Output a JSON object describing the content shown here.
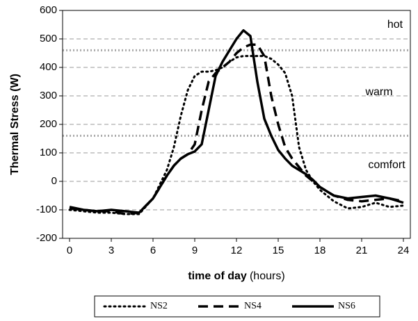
{
  "chart_data": {
    "type": "line",
    "ylabel": "Thermal Stress (W)",
    "xlabel": "time of day",
    "xlabel_unit": "(hours)",
    "x": [
      0,
      1,
      2,
      3,
      4,
      5,
      6,
      6.5,
      7,
      7.5,
      8,
      8.5,
      9,
      9.5,
      10,
      10.5,
      11,
      11.5,
      12,
      12.5,
      13,
      13.5,
      14,
      14.5,
      15,
      15.5,
      16,
      16.5,
      17,
      17.5,
      18,
      19,
      20,
      21,
      22,
      23,
      24
    ],
    "xlim": [
      -0.5,
      24.5
    ],
    "xticks": [
      0,
      3,
      6,
      9,
      12,
      15,
      18,
      21,
      24
    ],
    "ylim": [
      -200,
      600
    ],
    "yticks": [
      -200,
      -100,
      0,
      100,
      200,
      300,
      400,
      500,
      600
    ],
    "grid": true,
    "threshold_lines": [
      160,
      460
    ],
    "annotations": [
      "hot",
      "warm",
      "comfort"
    ],
    "legend": "bottom",
    "series": [
      {
        "name": "NS2",
        "color": "#000000",
        "style": "dotted",
        "values": [
          -100,
          -105,
          -110,
          -110,
          -115,
          -115,
          -60,
          -10,
          40,
          120,
          230,
          320,
          370,
          385,
          385,
          390,
          400,
          420,
          435,
          440,
          440,
          440,
          440,
          430,
          410,
          380,
          300,
          120,
          40,
          0,
          -30,
          -70,
          -95,
          -90,
          -75,
          -90,
          -85
        ]
      },
      {
        "name": "NS4",
        "color": "#000000",
        "style": "dashed",
        "values": [
          -95,
          -100,
          -105,
          -105,
          -115,
          -110,
          -60,
          -20,
          20,
          55,
          80,
          95,
          130,
          250,
          350,
          380,
          400,
          420,
          450,
          470,
          480,
          480,
          440,
          300,
          200,
          120,
          80,
          50,
          20,
          0,
          -20,
          -50,
          -65,
          -70,
          -65,
          -60,
          -70
        ]
      },
      {
        "name": "NS6",
        "color": "#000000",
        "style": "solid",
        "values": [
          -90,
          -100,
          -105,
          -100,
          -105,
          -110,
          -60,
          -20,
          20,
          55,
          80,
          95,
          105,
          130,
          250,
          370,
          420,
          460,
          500,
          530,
          510,
          350,
          220,
          160,
          110,
          80,
          55,
          40,
          25,
          5,
          -20,
          -50,
          -60,
          -55,
          -50,
          -60,
          -75
        ]
      }
    ]
  }
}
